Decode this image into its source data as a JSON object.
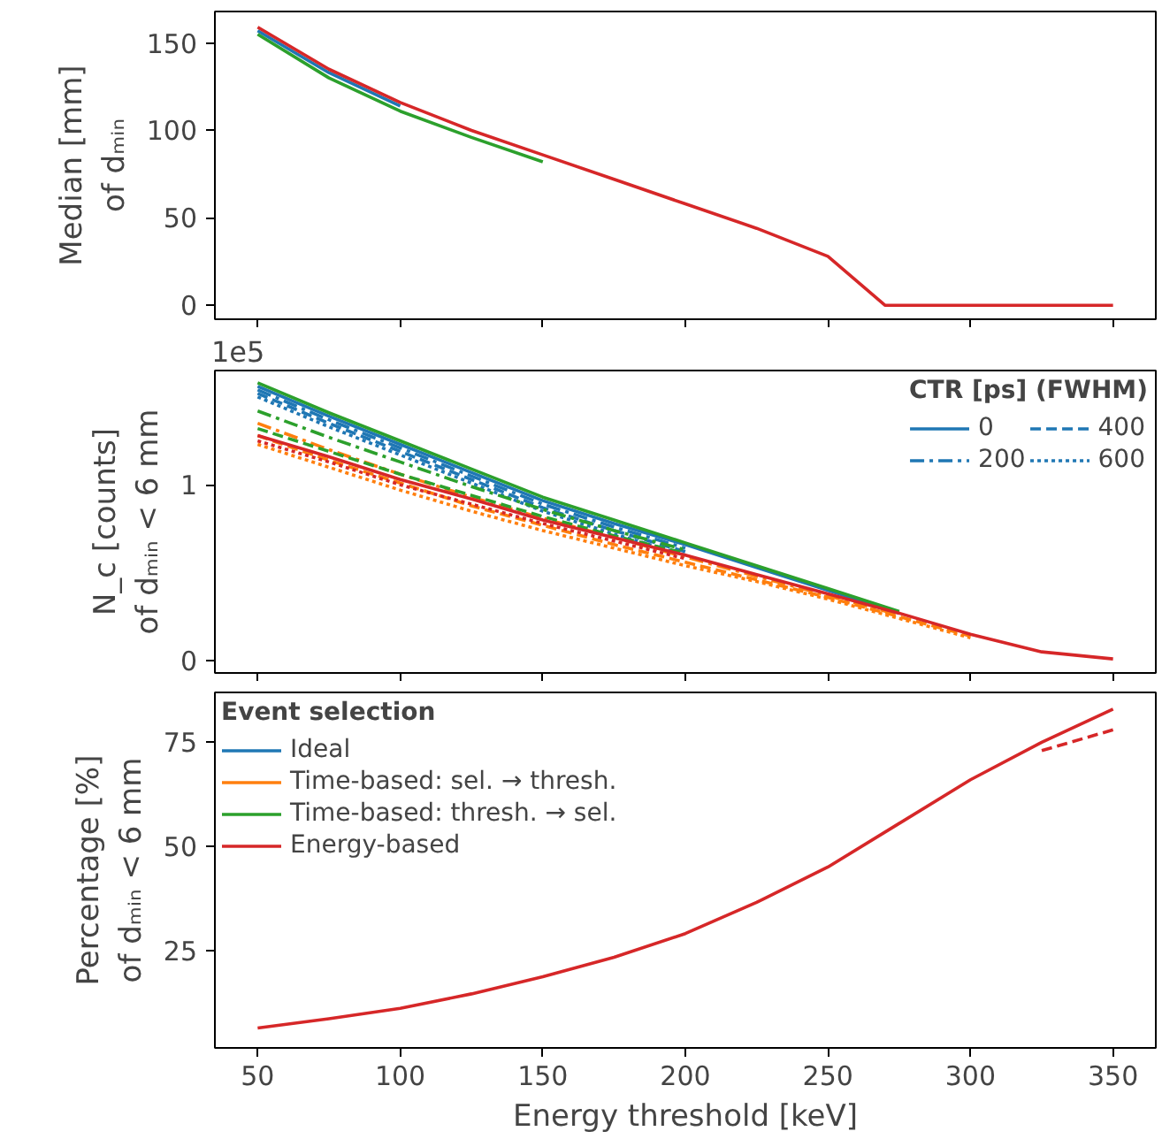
{
  "chart_data": [
    {
      "type": "line",
      "ylabel": "Median [mm]\nof dₘᵢₙ",
      "x": [
        50,
        75,
        100,
        125,
        150,
        175,
        200,
        225,
        250,
        270,
        300,
        325,
        350
      ],
      "xlim": [
        35,
        365
      ],
      "xticks": [
        50,
        100,
        150,
        200,
        250,
        300,
        350
      ],
      "ylim": [
        -8,
        168
      ],
      "yticks": [
        0,
        50,
        100,
        150
      ],
      "tick_labels": "y",
      "grid": false,
      "series": [
        {
          "color": "#1f77b4",
          "line_style": "solid",
          "values": [
            157,
            133,
            114,
            null,
            null,
            null,
            null,
            null,
            null,
            null,
            null,
            null,
            null
          ]
        },
        {
          "color": "#2ca02c",
          "line_style": "solid",
          "values": [
            155,
            130,
            111,
            96,
            82,
            null,
            null,
            null,
            null,
            null,
            null,
            null,
            null
          ]
        },
        {
          "color": "#d62728",
          "line_style": "solid",
          "values": [
            159,
            135,
            116,
            100,
            86,
            72,
            58,
            44,
            28,
            0,
            0,
            0,
            0
          ]
        }
      ]
    },
    {
      "type": "line",
      "ylabel": "N_c [counts]\nof dₘᵢₙ < 6 mm",
      "annotations": [
        "1e5"
      ],
      "legend_title": "CTR [ps] (FWHM)",
      "legend": "top right",
      "x": [
        50,
        75,
        100,
        125,
        150,
        175,
        200,
        225,
        250,
        275,
        300,
        325,
        350
      ],
      "xlim": [
        35,
        365
      ],
      "xticks": [
        50,
        100,
        150,
        200,
        250,
        300,
        350
      ],
      "ylim": [
        -0.07,
        1.65
      ],
      "yticks": [
        0,
        1
      ],
      "tick_labels": "y",
      "grid": false,
      "series": [
        {
          "name": "0",
          "color": "#1f77b4",
          "line_style": "solid",
          "values": [
            1.56,
            1.39,
            1.23,
            1.07,
            0.91,
            0.78,
            0.66,
            0.53,
            0.4,
            0.27,
            null,
            null,
            null
          ]
        },
        {
          "name": "200",
          "color": "#1f77b4",
          "line_style": "dashdot",
          "values": [
            1.54,
            1.37,
            1.21,
            1.05,
            0.89,
            0.76,
            0.64,
            null,
            null,
            null,
            null,
            null,
            null
          ]
        },
        {
          "name": "400",
          "color": "#1f77b4",
          "line_style": "dashed",
          "values": [
            1.52,
            1.35,
            1.19,
            1.03,
            0.87,
            0.74,
            0.62,
            null,
            null,
            null,
            null,
            null,
            null
          ]
        },
        {
          "name": "600",
          "color": "#1f77b4",
          "line_style": "dotted",
          "values": [
            1.5,
            1.33,
            1.17,
            1.01,
            0.85,
            0.72,
            0.6,
            null,
            null,
            null,
            null,
            null,
            null
          ]
        },
        {
          "color": "#ff7f0e",
          "line_style": "dashdot",
          "values": [
            1.35,
            1.2,
            1.06,
            0.93,
            0.81,
            0.7,
            0.59,
            0.48,
            0.37,
            0.26,
            null,
            null,
            null
          ]
        },
        {
          "color": "#ff7f0e",
          "line_style": "dashed",
          "values": [
            1.28,
            1.14,
            1.01,
            0.88,
            0.77,
            0.66,
            0.56,
            0.46,
            0.36,
            0.25,
            0.14,
            null,
            null
          ]
        },
        {
          "color": "#ff7f0e",
          "line_style": "dotted",
          "values": [
            1.23,
            1.1,
            0.97,
            0.85,
            0.74,
            0.64,
            0.54,
            0.45,
            0.35,
            0.24,
            0.13,
            null,
            null
          ]
        },
        {
          "color": "#2ca02c",
          "line_style": "solid",
          "values": [
            1.58,
            1.41,
            1.25,
            1.09,
            0.93,
            0.8,
            0.67,
            0.54,
            0.41,
            0.28,
            null,
            null,
            null
          ]
        },
        {
          "color": "#2ca02c",
          "line_style": "dashdot",
          "values": [
            1.42,
            1.27,
            1.13,
            0.99,
            0.86,
            0.74,
            0.63,
            null,
            null,
            null,
            null,
            null,
            null
          ]
        },
        {
          "color": "#2ca02c",
          "line_style": "dashed",
          "values": [
            1.32,
            1.19,
            1.06,
            0.94,
            0.82,
            0.71,
            0.61,
            null,
            null,
            null,
            null,
            null,
            null
          ]
        },
        {
          "color": "#d62728",
          "line_style": "solid",
          "values": [
            1.28,
            1.16,
            1.03,
            0.92,
            0.8,
            0.7,
            0.6,
            0.49,
            0.38,
            0.27,
            0.15,
            0.05,
            0.01
          ]
        },
        {
          "color": "#d62728",
          "line_style": "dotted",
          "values": [
            1.25,
            1.13,
            1.0,
            0.89,
            0.78,
            0.68,
            0.58,
            null,
            null,
            null,
            null,
            null,
            null
          ]
        }
      ]
    },
    {
      "type": "line",
      "ylabel": "Percentage [%]\nof dₘᵢₙ < 6 mm",
      "xlabel": "Energy threshold [keV]",
      "legend_title": "Event selection",
      "legend": "top left",
      "x": [
        50,
        75,
        100,
        125,
        150,
        175,
        200,
        225,
        250,
        275,
        300,
        325,
        350
      ],
      "xlim": [
        35,
        365
      ],
      "xticks": [
        50,
        100,
        150,
        200,
        250,
        300,
        350
      ],
      "ylim": [
        1.5,
        87
      ],
      "yticks": [
        25,
        50,
        75
      ],
      "grid": false,
      "series": [
        {
          "name": "Ideal",
          "color": "#1f77b4",
          "line_style": "solid",
          "values": [
            null,
            null,
            null,
            null,
            null,
            null,
            null,
            null,
            null,
            null,
            null,
            null,
            null
          ]
        },
        {
          "name": "Time-based: sel. → thresh.",
          "color": "#ff7f0e",
          "line_style": "solid",
          "values": [
            null,
            null,
            null,
            null,
            null,
            null,
            null,
            null,
            null,
            null,
            null,
            null,
            null
          ]
        },
        {
          "name": "Time-based: thresh. → sel.",
          "color": "#2ca02c",
          "line_style": "solid",
          "values": [
            null,
            null,
            null,
            null,
            null,
            null,
            null,
            null,
            null,
            null,
            null,
            null,
            null
          ]
        },
        {
          "name": "Energy-based",
          "color": "#d62728",
          "line_style": "solid",
          "values": [
            6.3,
            8.5,
            11,
            14.5,
            18.6,
            23.3,
            29,
            36.5,
            45,
            55.5,
            66,
            75,
            83
          ]
        },
        {
          "color": "#d62728",
          "line_style": "dashed",
          "values": [
            null,
            null,
            null,
            null,
            null,
            null,
            null,
            null,
            null,
            null,
            null,
            73,
            78
          ]
        }
      ]
    }
  ]
}
